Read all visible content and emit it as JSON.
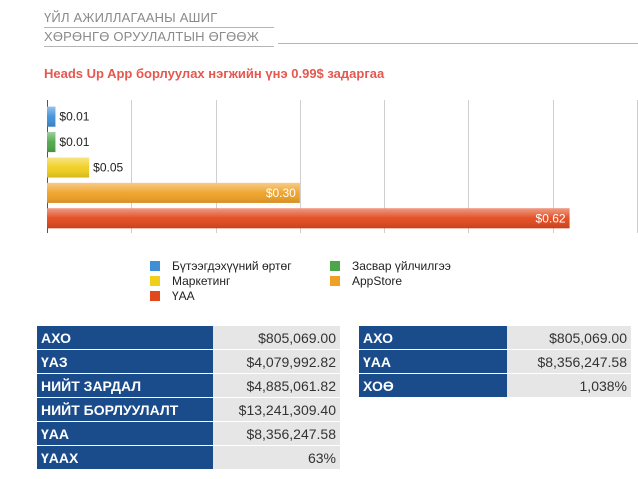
{
  "header": {
    "line1": "ҮЙЛ АЖИЛЛАГААНЫ АШИГ",
    "line2": "ХӨРӨНГӨ ОРУУЛАЛТЫН ӨГӨӨЖ"
  },
  "chart_data": {
    "type": "bar",
    "orientation": "horizontal",
    "title": "Heads Up App борлуулах нэгжийн үнэ 0.99$ задаргаа",
    "categories": [
      "Бүтээгдэхүүний өртөг",
      "Засвар үйлчилгээ",
      "Маркетинг",
      "AppStore",
      "ҮАА"
    ],
    "values": [
      0.01,
      0.01,
      0.05,
      0.3,
      0.62
    ],
    "data_labels": [
      "$0.01",
      "$0.01",
      "$0.05",
      "$0.30",
      "$0.62"
    ],
    "colors": [
      "#3f8fd8",
      "#4ea64a",
      "#f0cf1c",
      "#f0a125",
      "#e2481c"
    ],
    "xlim": [
      0,
      0.7
    ],
    "grid": true,
    "legend_position": "bottom"
  },
  "tables": {
    "left": [
      {
        "key": "АХО",
        "value": "$805,069.00"
      },
      {
        "key": "ҮАЗ",
        "value": "$4,079,992.82"
      },
      {
        "key": "НИЙТ ЗАРДАЛ",
        "value": "$4,885,061.82"
      },
      {
        "key": "НИЙТ БОРЛУУЛАЛТ",
        "value": "$13,241,309.40"
      },
      {
        "key": "ҮАА",
        "value": "$8,356,247.58"
      },
      {
        "key": "ҮААХ",
        "value": "63%"
      }
    ],
    "right": [
      {
        "key": "АХО",
        "value": "$805,069.00"
      },
      {
        "key": "ҮАА",
        "value": "$8,356,247.58"
      },
      {
        "key": "ХОӨ",
        "value": "1,038%"
      }
    ]
  }
}
